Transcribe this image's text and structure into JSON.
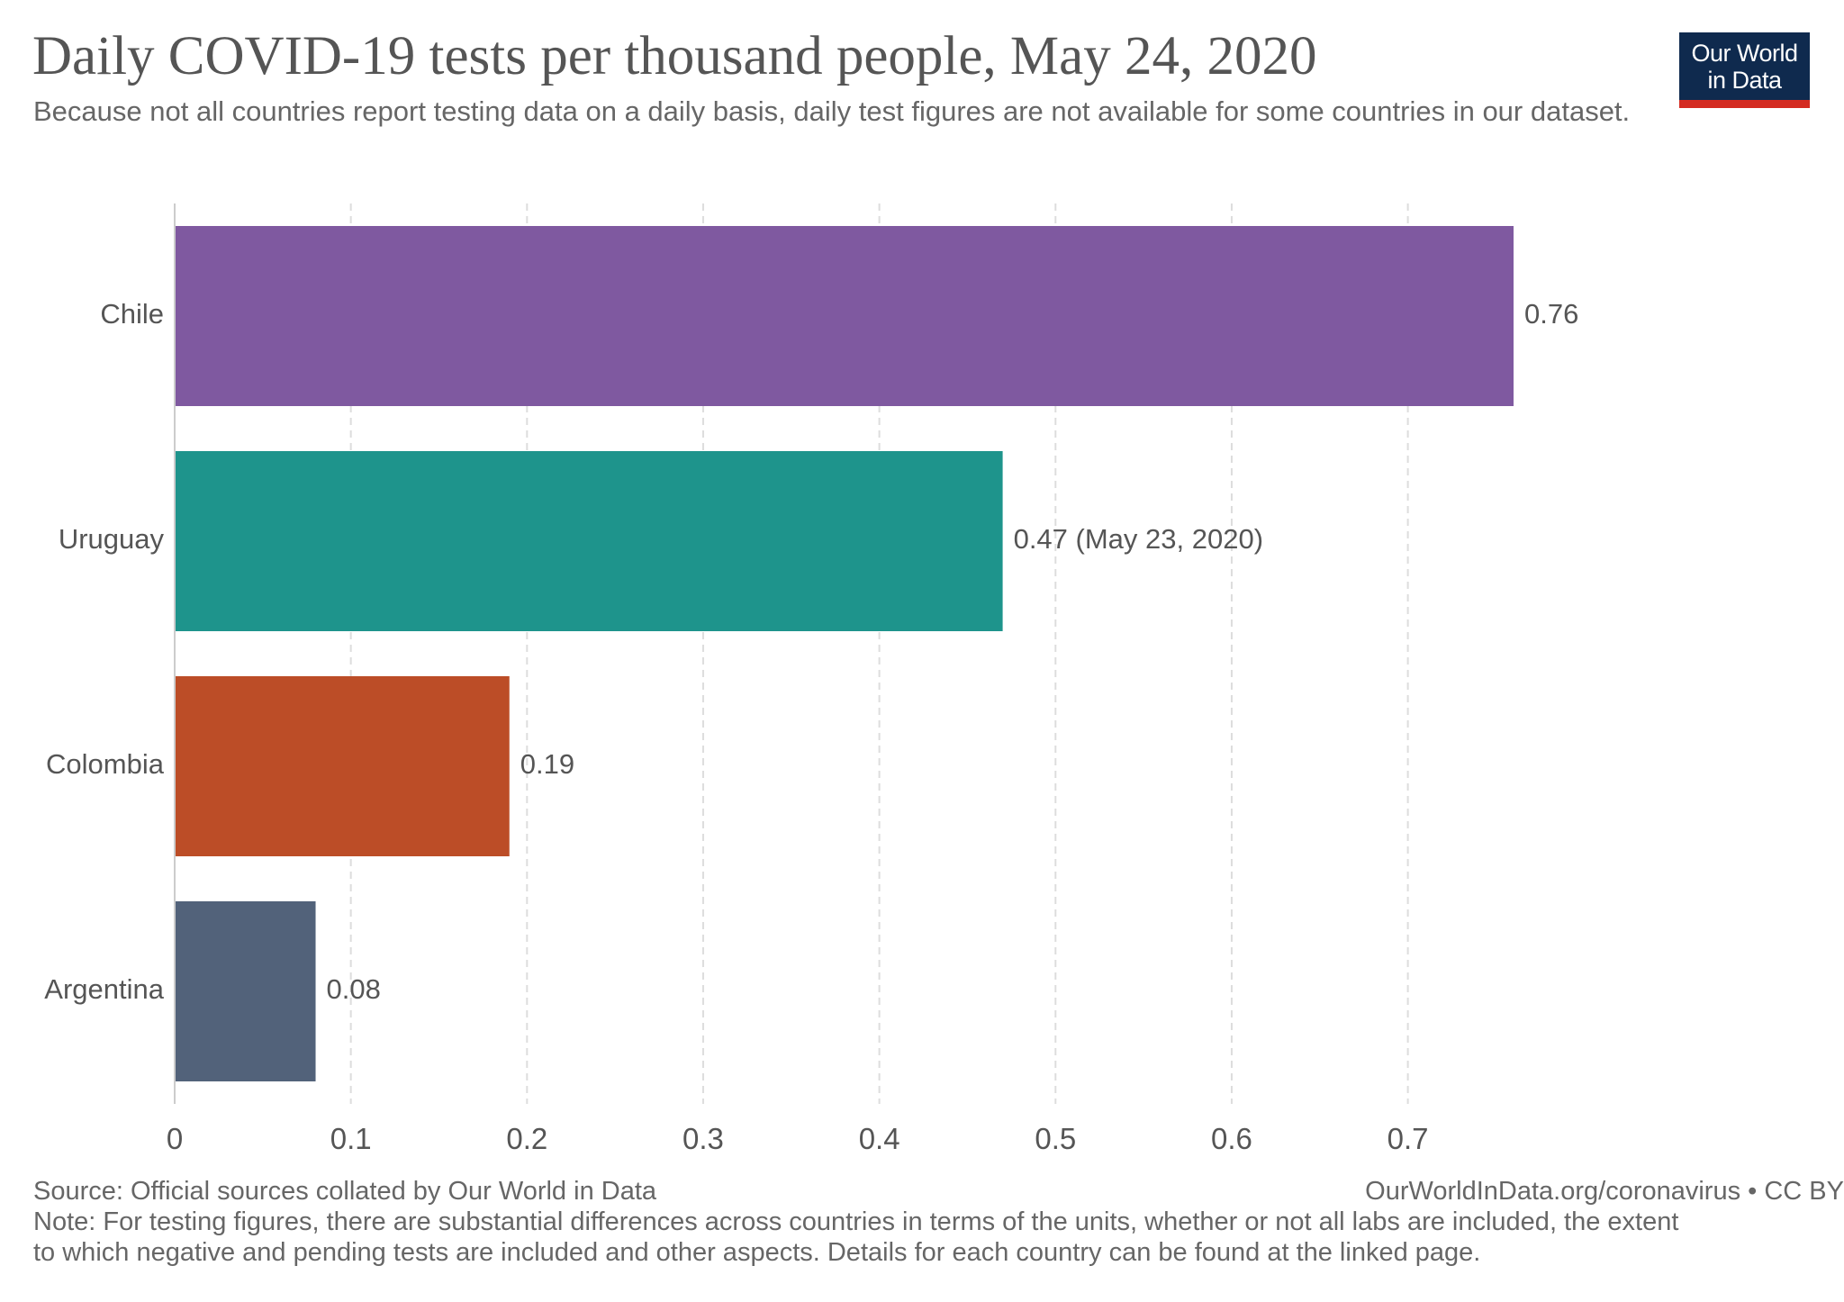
{
  "header": {
    "title": "Daily COVID-19 tests per thousand people, May 24, 2020",
    "subtitle": "Because not all countries report testing data on a daily basis, daily test figures are not available for some countries in our dataset."
  },
  "logo": {
    "line1": "Our World",
    "line2": "in Data",
    "bg_color": "#0f2a4e",
    "accent_color": "#d42b21"
  },
  "chart_data": {
    "type": "bar",
    "orientation": "horizontal",
    "categories": [
      "Chile",
      "Uruguay",
      "Colombia",
      "Argentina"
    ],
    "values": [
      0.76,
      0.47,
      0.19,
      0.08
    ],
    "value_labels": [
      "0.76",
      "0.47 (May 23, 2020)",
      "0.19",
      "0.08"
    ],
    "colors": [
      "#7f59a0",
      "#1e948c",
      "#bc4d27",
      "#52627a"
    ],
    "xlim": [
      0,
      0.76
    ],
    "xticks": [
      0,
      0.1,
      0.2,
      0.3,
      0.4,
      0.5,
      0.6,
      0.7
    ],
    "xtick_labels": [
      "0",
      "0.1",
      "0.2",
      "0.3",
      "0.4",
      "0.5",
      "0.6",
      "0.7"
    ],
    "grid": true,
    "title": "Daily COVID-19 tests per thousand people, May 24, 2020"
  },
  "footer": {
    "source": "Source: Official sources collated by Our World in Data",
    "credit": "OurWorldInData.org/coronavirus • CC BY",
    "note_line1": "Note: For testing figures, there are substantial differences across countries in terms of the units, whether or not all labs are included, the extent",
    "note_line2": "to which negative and pending tests are included and other aspects. Details for each country can be found at the linked page."
  }
}
